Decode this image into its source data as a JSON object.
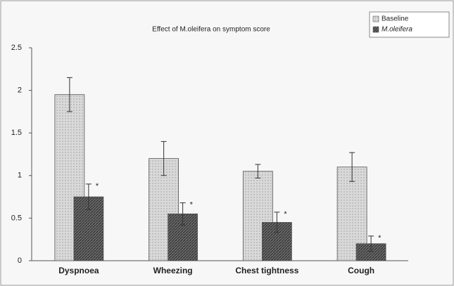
{
  "chart_data": {
    "type": "bar",
    "title": "Effect of M.oleifera on symptom score",
    "categories": [
      "Dyspnoea",
      "Wheezing",
      "Chest tightness",
      "Cough"
    ],
    "series": [
      {
        "name": "Baseline",
        "color": "#d9d9d9",
        "values": [
          1.95,
          1.2,
          1.05,
          1.1
        ],
        "errors": [
          0.2,
          0.2,
          0.08,
          0.17
        ]
      },
      {
        "name": "M.oleifera",
        "color": "#6a6a6a",
        "values": [
          0.75,
          0.55,
          0.45,
          0.2
        ],
        "errors": [
          0.15,
          0.13,
          0.12,
          0.09
        ],
        "annotations": [
          "*",
          "*",
          "*",
          "*"
        ]
      }
    ],
    "ylim": [
      0,
      2.5
    ],
    "yticks": [
      0,
      0.5,
      1,
      1.5,
      2,
      2.5
    ],
    "grid": false,
    "legend": "top-right"
  }
}
